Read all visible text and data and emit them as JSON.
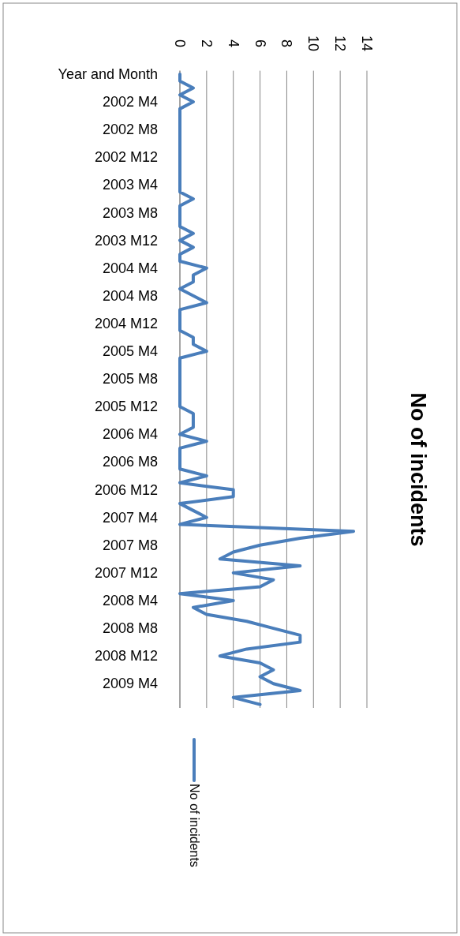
{
  "chart_data": {
    "type": "line",
    "title": "No of incidents",
    "categories": [
      "Year and Month",
      null,
      null,
      null,
      "2002 M4",
      null,
      null,
      null,
      "2002 M8",
      null,
      null,
      null,
      "2002 M12",
      null,
      null,
      null,
      "2003 M4",
      null,
      null,
      null,
      "2003 M8",
      null,
      null,
      null,
      "2003 M12",
      null,
      null,
      null,
      "2004 M4",
      null,
      null,
      null,
      "2004 M8",
      null,
      null,
      null,
      "2004 M12",
      null,
      null,
      null,
      "2005 M4",
      null,
      null,
      null,
      "2005 M8",
      null,
      null,
      null,
      "2005 M12",
      null,
      null,
      null,
      "2006 M4",
      null,
      null,
      null,
      "2006 M8",
      null,
      null,
      null,
      "2006 M12",
      null,
      null,
      null,
      "2007 M4",
      null,
      null,
      null,
      "2007 M8",
      null,
      null,
      null,
      "2007 M12",
      null,
      null,
      null,
      "2008 M4",
      null,
      null,
      null,
      "2008 M8",
      null,
      null,
      null,
      "2008 M12",
      null,
      null,
      null,
      "2009 M4",
      null,
      null,
      null
    ],
    "series": [
      {
        "name": "No of incidents",
        "color": "#4a7ebb",
        "values": [
          0,
          0,
          1,
          0,
          1,
          0,
          0,
          0,
          0,
          0,
          0,
          0,
          0,
          0,
          0,
          0,
          0,
          0,
          1,
          0,
          0,
          0,
          0,
          1,
          0,
          1,
          0,
          0,
          2,
          1,
          1,
          0,
          1,
          2,
          0,
          0,
          0,
          0,
          1,
          1,
          2,
          0,
          0,
          0,
          0,
          0,
          0,
          0,
          0,
          1,
          1,
          1,
          0,
          2,
          0,
          0,
          0,
          0,
          2,
          0,
          4,
          4,
          0,
          1,
          2,
          0,
          13,
          9,
          6,
          4,
          3,
          9,
          4,
          7,
          6,
          0,
          4,
          1,
          2,
          5,
          7,
          9,
          9,
          5,
          3,
          6,
          7,
          6,
          7,
          9,
          4,
          6
        ]
      }
    ],
    "orientation": "horizontal",
    "xlim": [
      0,
      14
    ],
    "xticks": [
      0,
      2,
      4,
      6,
      8,
      10,
      12,
      14
    ],
    "grid": true,
    "legend": "bottom",
    "line_style": "solid",
    "marker": "none"
  }
}
